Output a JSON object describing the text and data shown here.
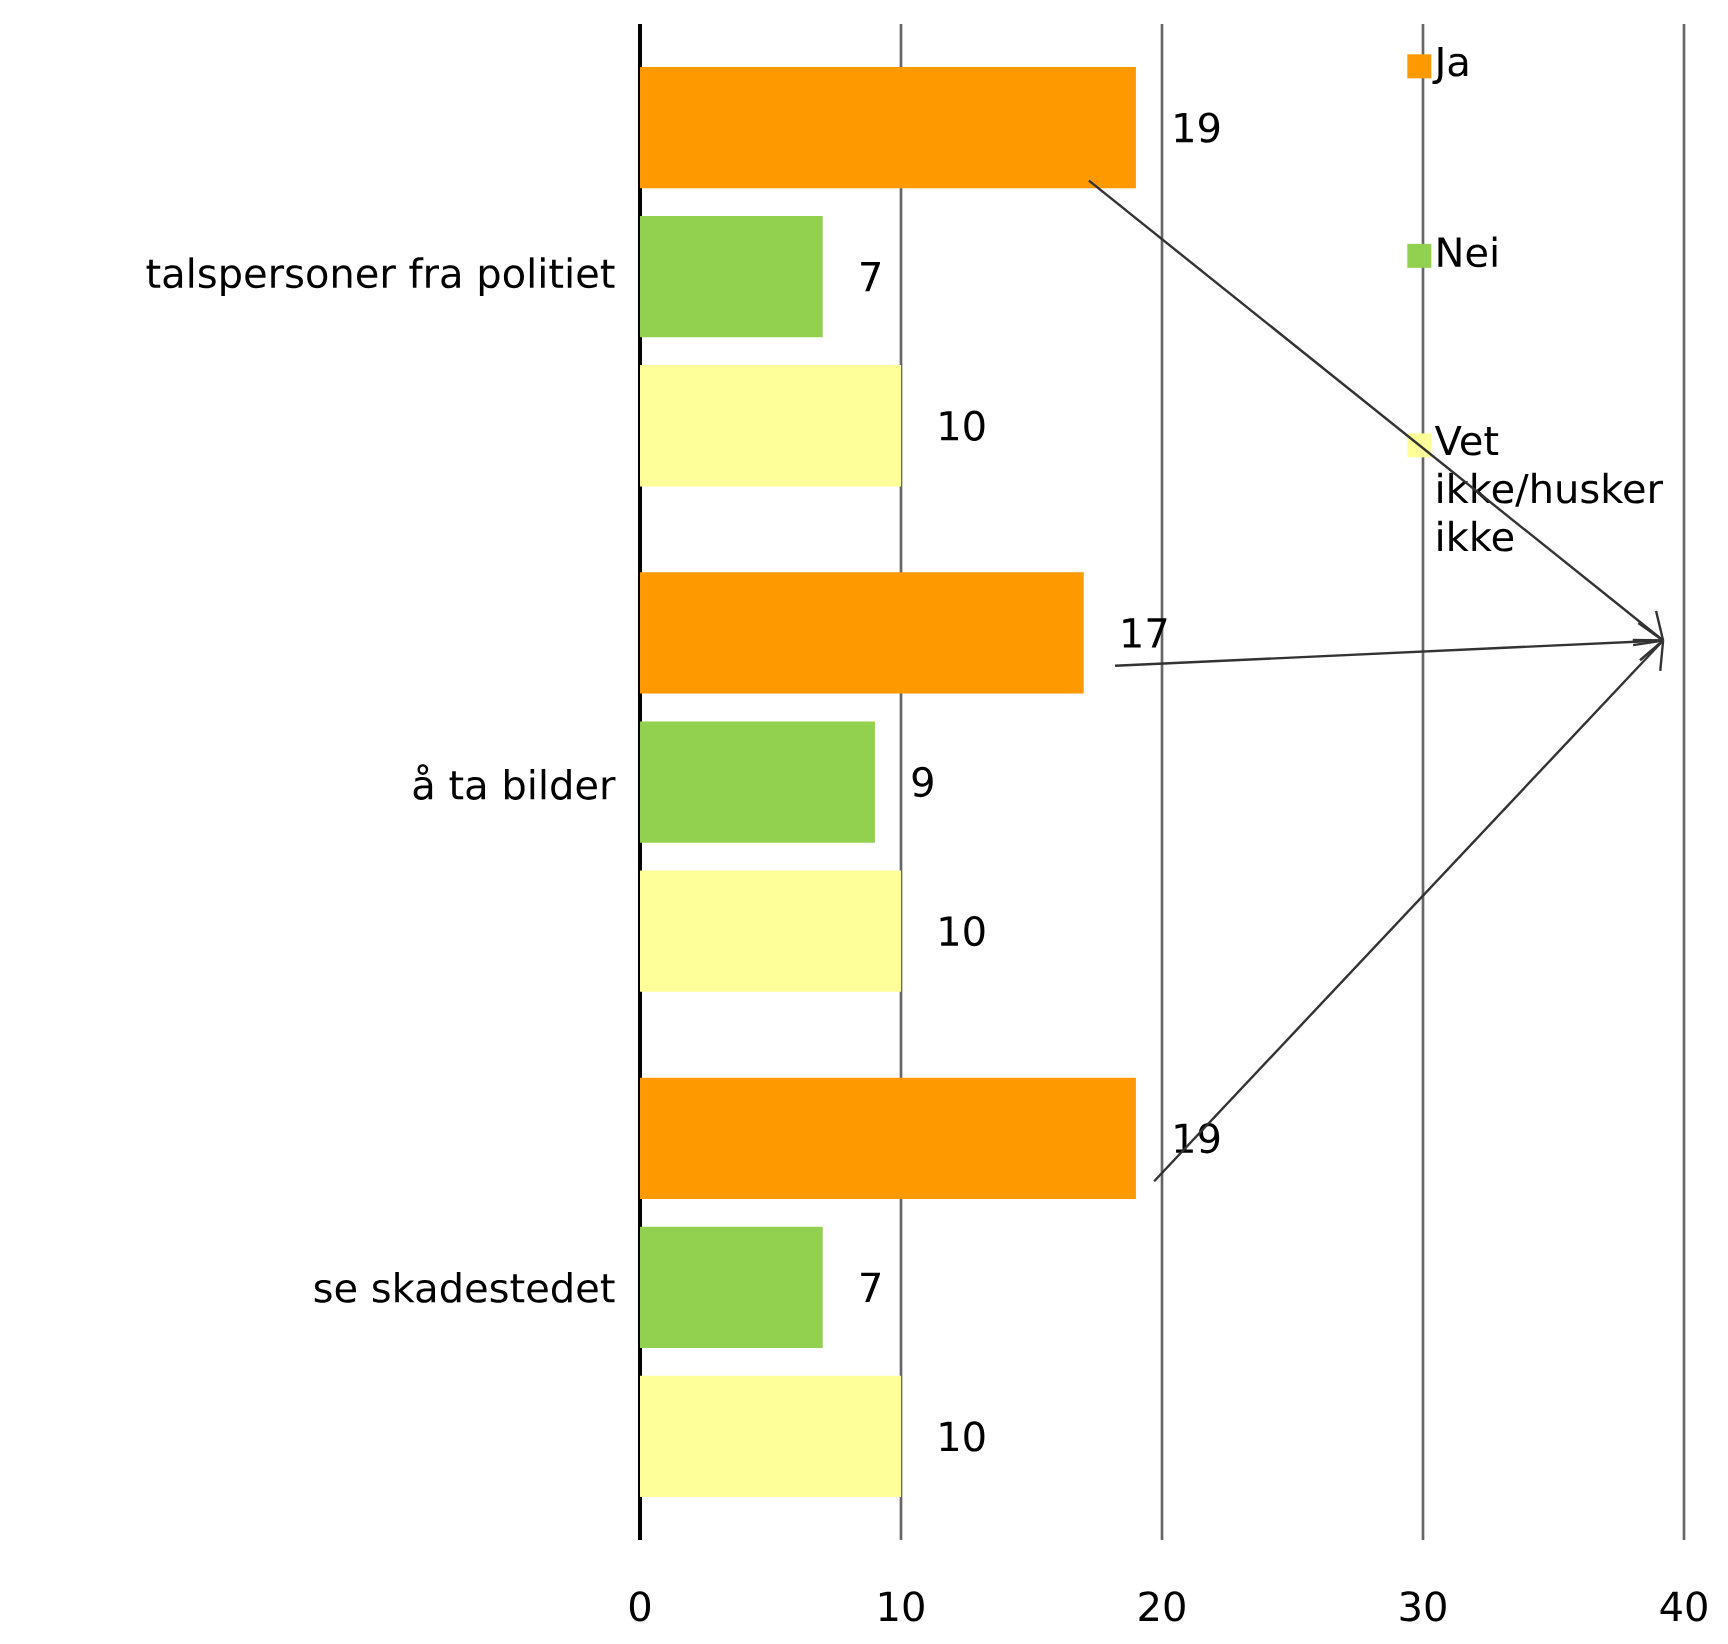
{
  "chart_data": {
    "type": "bar",
    "orientation": "horizontal",
    "categories": [
      "talspersoner fra politiet",
      "å ta bilder",
      "se skadestedet"
    ],
    "series": [
      {
        "name": "Ja",
        "color": "#ff9900",
        "values": [
          19,
          17,
          19
        ]
      },
      {
        "name": "Nei",
        "color": "#92d050",
        "values": [
          7,
          9,
          7
        ]
      },
      {
        "name": "Vet ikke/husker ikke",
        "color": "#ffff99",
        "values": [
          10,
          10,
          10
        ]
      }
    ],
    "xlim": [
      0,
      40
    ],
    "xticks": [
      0,
      10,
      20,
      30,
      40
    ],
    "grid": "x",
    "data_labels": true,
    "legend": "top right"
  }
}
